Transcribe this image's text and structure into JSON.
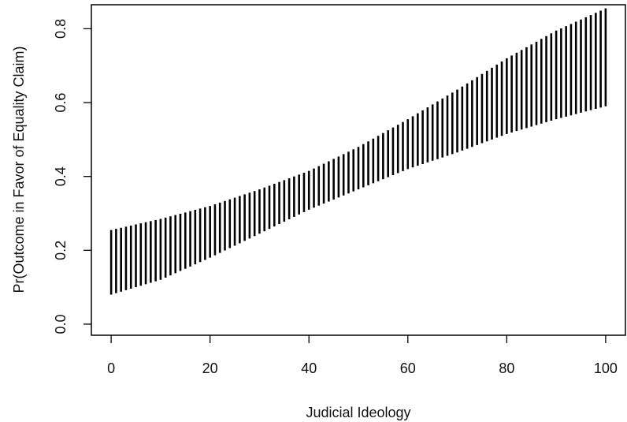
{
  "chart_data": {
    "type": "interval",
    "title": "",
    "xlabel": "Judicial Ideology",
    "ylabel": "Pr(Outcome in Favor of Equality Claim)",
    "xlim": [
      -4,
      104
    ],
    "ylim": [
      -0.03,
      0.865
    ],
    "xticks": [
      0,
      20,
      40,
      60,
      80,
      100
    ],
    "xtick_labels": [
      "0",
      "20",
      "40",
      "60",
      "80",
      "100"
    ],
    "yticks": [
      0.0,
      0.2,
      0.4,
      0.6,
      0.8
    ],
    "ytick_labels": [
      "0.0",
      "0.2",
      "0.4",
      "0.6",
      "0.8"
    ],
    "grid": false,
    "interval_step": 1,
    "x_range": [
      0,
      100
    ],
    "lower_anchors": {
      "x": [
        0,
        10,
        20,
        30,
        40,
        50,
        60,
        70,
        80,
        90,
        100
      ],
      "y": [
        0.08,
        0.12,
        0.18,
        0.245,
        0.31,
        0.365,
        0.42,
        0.465,
        0.515,
        0.555,
        0.59
      ]
    },
    "upper_anchors": {
      "x": [
        0,
        10,
        20,
        30,
        40,
        50,
        60,
        70,
        80,
        90,
        100
      ],
      "y": [
        0.255,
        0.285,
        0.32,
        0.365,
        0.415,
        0.48,
        0.555,
        0.635,
        0.72,
        0.795,
        0.855
      ]
    }
  }
}
